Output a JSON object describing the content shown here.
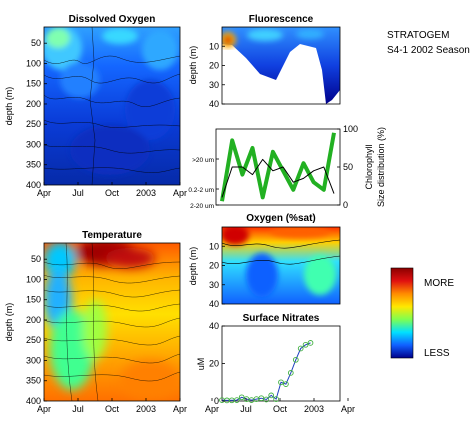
{
  "annotation": {
    "line1": "STRATOGEM",
    "line2": "S4-1 2002 Season"
  },
  "colorbar": {
    "more_label": "MORE",
    "less_label": "LESS",
    "colors": [
      "#8b0000",
      "#e01010",
      "#ff8c00",
      "#ffe800",
      "#7fff50",
      "#00e0ff",
      "#1060ff",
      "#00008b"
    ]
  },
  "chart_data": [
    {
      "type": "heatmap",
      "title": "Dissolved Oxygen",
      "ylabel": "depth (m)",
      "ylim": [
        400,
        10
      ],
      "y_ticks": [
        "50",
        "100",
        "150",
        "200",
        "250",
        "300",
        "350",
        "400"
      ],
      "x_ticks": [
        "Apr",
        "Jul",
        "Oct",
        "2003",
        "Apr"
      ],
      "colormap": "jet"
    },
    {
      "type": "heatmap",
      "title": "Temperature",
      "ylabel": "depth (m)",
      "ylim": [
        400,
        10
      ],
      "y_ticks": [
        "50",
        "100",
        "150",
        "200",
        "250",
        "300",
        "350",
        "400"
      ],
      "x_ticks": [
        "Apr",
        "Jul",
        "Oct",
        "2003",
        "Apr"
      ],
      "colormap": "jet"
    },
    {
      "type": "heatmap",
      "title": "Fluorescence",
      "ylabel": "depth (m)",
      "ylim": [
        40,
        0
      ],
      "y_ticks": [
        "10",
        "20",
        "30",
        "40"
      ],
      "colormap": "jet"
    },
    {
      "type": "line",
      "ylabel_right": "Chlorophyll Size distribution (%)",
      "ylim": [
        0,
        100
      ],
      "y_ticks_right": [
        "0",
        "50",
        "100"
      ],
      "categories_left": [
        ">20 um",
        "0.2-2 um",
        "2-20 um"
      ],
      "series": [
        {
          "values": [
            5,
            85,
            40,
            75,
            10,
            70,
            45,
            20,
            55,
            30,
            20,
            95
          ]
        },
        {
          "values": [
            10,
            50,
            50,
            40,
            60,
            45,
            50,
            30,
            35,
            45,
            50,
            15
          ]
        }
      ]
    },
    {
      "type": "heatmap",
      "title": "Oxygen (%sat)",
      "ylabel": "depth (m)",
      "ylim": [
        40,
        0
      ],
      "y_ticks": [
        "10",
        "20",
        "30",
        "40"
      ],
      "colormap": "jet"
    },
    {
      "type": "line",
      "title": "Surface Nitrates",
      "ylabel": "uM",
      "ylim": [
        0,
        40
      ],
      "y_ticks": [
        "0",
        "20",
        "40"
      ],
      "x_ticks": [
        "Apr",
        "Jul",
        "Oct",
        "2003",
        "Apr"
      ],
      "xlim": [
        0,
        12
      ],
      "series": [
        {
          "x": [
            0.0,
            0.5,
            1.0,
            1.5,
            2.0,
            2.5,
            3.0,
            3.5,
            4.0,
            4.5,
            5.0,
            5.5,
            6.0,
            6.5,
            7.0,
            7.5,
            8.0,
            8.5,
            9.0
          ],
          "y": [
            0.5,
            0.3,
            0.4,
            0.5,
            2.0,
            1.0,
            0.5,
            1.0,
            1.5,
            0.8,
            3.0,
            1.0,
            10.0,
            9.0,
            15.0,
            22.0,
            28.0,
            30.0,
            31.0
          ]
        }
      ]
    }
  ]
}
